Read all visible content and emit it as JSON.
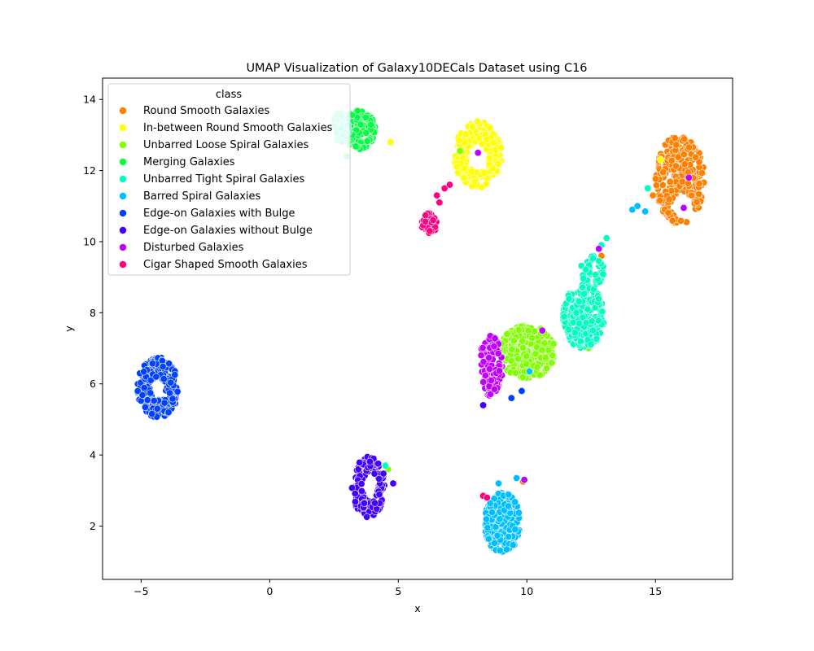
{
  "chart_data": {
    "type": "scatter",
    "title": "UMAP Visualization of Galaxy10DECals Dataset using C16",
    "xlabel": "x",
    "ylabel": "y",
    "xlim": [
      -6.5,
      18
    ],
    "ylim": [
      0.5,
      14.6
    ],
    "xticks": [
      -5,
      0,
      5,
      10,
      15
    ],
    "yticks": [
      2,
      4,
      6,
      8,
      10,
      12,
      14
    ],
    "grid": false,
    "legend_placement": "upper-left",
    "legend_title": "class",
    "series": [
      {
        "name": "Round Smooth Galaxies",
        "color": "#ff8000",
        "clusters": [
          {
            "cx": 15.95,
            "cy": 11.75,
            "rx": 0.95,
            "ry": 1.25,
            "n": 260,
            "hole": [
              16.05,
              11.0,
              0.45,
              0.4
            ]
          }
        ],
        "points": [
          [
            3.7,
            13.55
          ],
          [
            9.85,
            3.25
          ],
          [
            14.9,
            11.3
          ],
          [
            12.9,
            9.6
          ]
        ]
      },
      {
        "name": "In-between Round Smooth Galaxies",
        "color": "#ffff00",
        "clusters": [
          {
            "cx": 8.1,
            "cy": 12.45,
            "rx": 0.95,
            "ry": 0.95,
            "n": 220,
            "hole": [
              8.1,
              12.35,
              0.4,
              0.4
            ]
          }
        ],
        "points": [
          [
            4.7,
            12.8
          ],
          [
            15.2,
            12.3
          ]
        ]
      },
      {
        "name": "Unbarred Loose Spiral Galaxies",
        "color": "#80ff00",
        "clusters": [
          {
            "cx": 10.0,
            "cy": 6.9,
            "rx": 1.1,
            "ry": 0.75,
            "n": 320,
            "hole": null
          }
        ],
        "points": [
          [
            7.4,
            12.55
          ],
          [
            4.6,
            3.6
          ],
          [
            12.4,
            7.0
          ],
          [
            11.0,
            6.8
          ]
        ]
      },
      {
        "name": "Merging Galaxies",
        "color": "#00ff40",
        "clusters": [
          {
            "cx": 3.45,
            "cy": 13.15,
            "rx": 0.7,
            "ry": 0.55,
            "n": 160,
            "hole": null
          }
        ],
        "points": [
          [
            -4.6,
            6.1
          ],
          [
            3.0,
            12.4
          ]
        ]
      },
      {
        "name": "Unbarred Tight Spiral Galaxies",
        "color": "#00ffbf",
        "clusters": [
          {
            "cx": 12.2,
            "cy": 7.9,
            "rx": 0.8,
            "ry": 0.9,
            "n": 200,
            "hole": null
          },
          {
            "cx": 12.55,
            "cy": 9.2,
            "rx": 0.45,
            "ry": 0.45,
            "n": 40,
            "hole": null
          },
          {
            "cx": 2.75,
            "cy": 13.2,
            "rx": 0.35,
            "ry": 0.45,
            "n": 55,
            "hole": null
          }
        ],
        "points": [
          [
            13.1,
            10.1
          ],
          [
            12.9,
            9.9
          ],
          [
            4.5,
            3.7
          ],
          [
            14.7,
            11.5
          ]
        ]
      },
      {
        "name": "Barred Spiral Galaxies",
        "color": "#00bfff",
        "clusters": [
          {
            "cx": 9.05,
            "cy": 2.1,
            "rx": 0.7,
            "ry": 0.85,
            "n": 260,
            "hole": null
          }
        ],
        "points": [
          [
            14.3,
            11.0
          ],
          [
            14.1,
            10.9
          ],
          [
            14.6,
            10.85
          ],
          [
            10.1,
            6.35
          ],
          [
            9.6,
            3.35
          ],
          [
            8.9,
            3.2
          ]
        ]
      },
      {
        "name": "Edge-on Galaxies with Bulge",
        "color": "#0040ff",
        "clusters": [
          {
            "cx": -4.35,
            "cy": 5.9,
            "rx": 0.8,
            "ry": 0.85,
            "n": 240,
            "hole": [
              -4.35,
              5.85,
              0.3,
              0.3
            ]
          }
        ],
        "points": [
          [
            9.4,
            5.6
          ],
          [
            9.8,
            5.8
          ]
        ]
      },
      {
        "name": "Edge-on Galaxies without Bulge",
        "color": "#4000ff",
        "clusters": [
          {
            "cx": 3.85,
            "cy": 3.1,
            "rx": 0.65,
            "ry": 0.85,
            "n": 150,
            "hole": [
              3.9,
              3.1,
              0.3,
              0.4
            ]
          }
        ],
        "points": [
          [
            4.8,
            3.2
          ],
          [
            8.3,
            5.4
          ]
        ]
      },
      {
        "name": "Disturbed Galaxies",
        "color": "#bf00ff",
        "clusters": [
          {
            "cx": 8.6,
            "cy": 6.5,
            "rx": 0.45,
            "ry": 0.9,
            "n": 110,
            "hole": null
          }
        ],
        "points": [
          [
            16.3,
            11.8
          ],
          [
            16.1,
            10.95
          ],
          [
            12.8,
            9.8
          ],
          [
            10.6,
            7.5
          ],
          [
            8.1,
            12.5
          ],
          [
            9.9,
            3.3
          ]
        ]
      },
      {
        "name": "Cigar Shaped Smooth Galaxies",
        "color": "#ff0080",
        "clusters": [
          {
            "cx": 6.2,
            "cy": 10.5,
            "rx": 0.3,
            "ry": 0.3,
            "n": 45,
            "hole": null
          }
        ],
        "points": [
          [
            6.5,
            11.3
          ],
          [
            6.8,
            11.5
          ],
          [
            6.6,
            11.1
          ],
          [
            7.0,
            11.6
          ],
          [
            8.3,
            2.85
          ],
          [
            8.45,
            2.8
          ]
        ]
      }
    ]
  }
}
